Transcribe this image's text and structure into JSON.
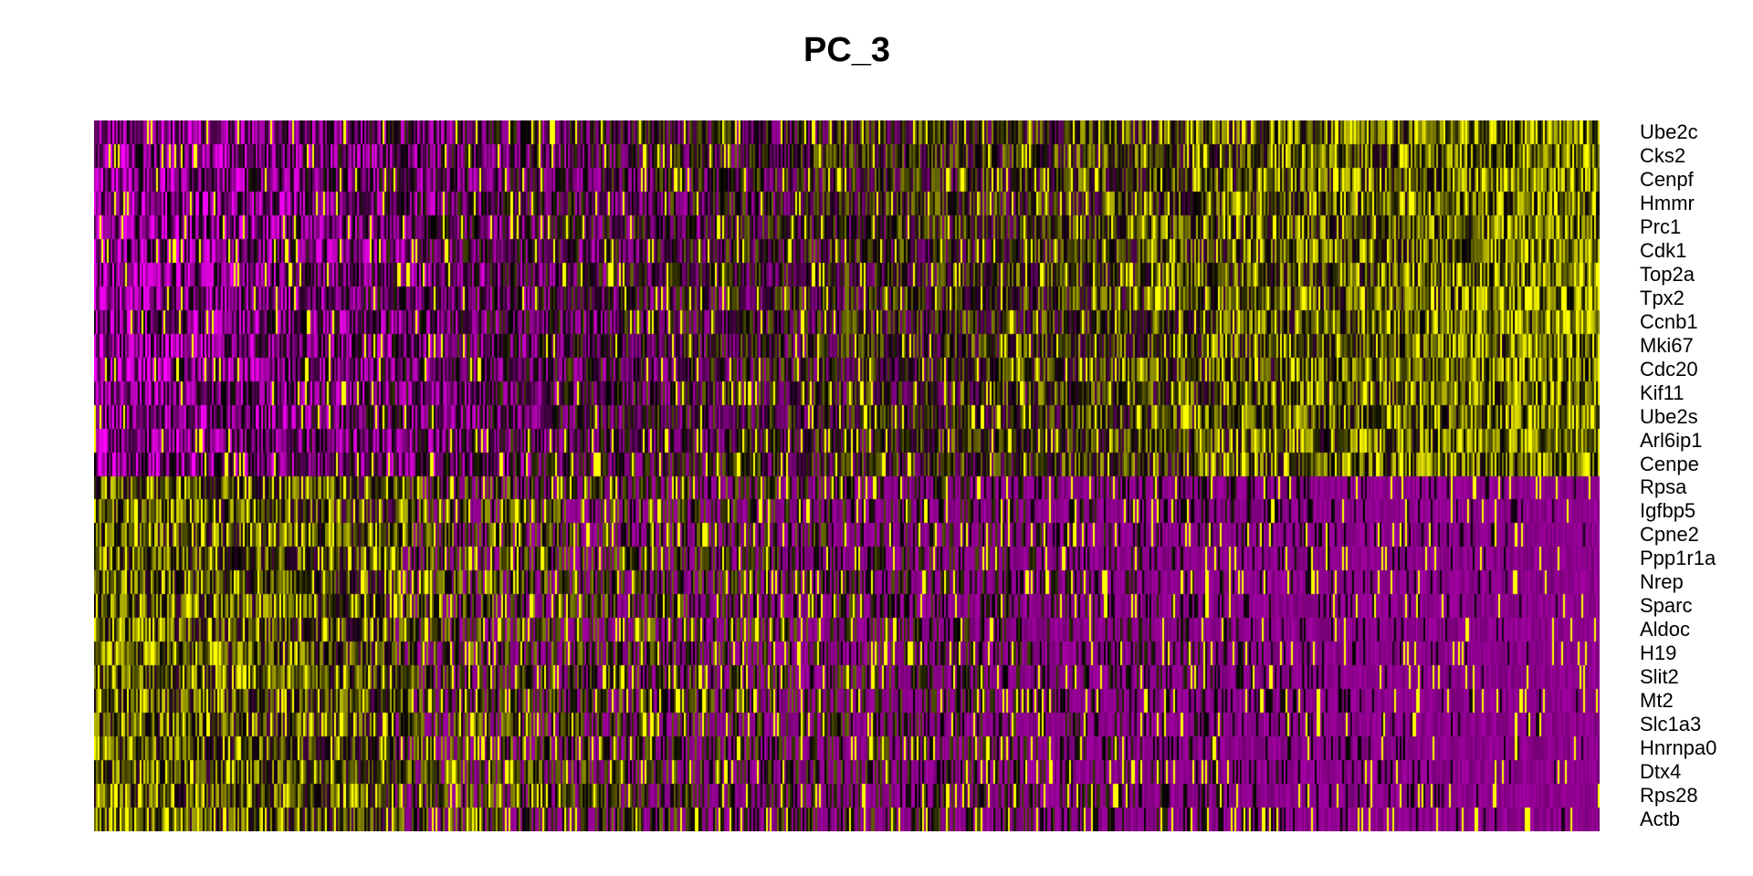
{
  "chart_data": {
    "type": "heatmap",
    "title": "PC_3",
    "colorscale": {
      "low": "#ff00ff",
      "mid": "#000000",
      "high": "#ffff00"
    },
    "genes": [
      "Ube2c",
      "Cks2",
      "Cenpf",
      "Hmmr",
      "Prc1",
      "Cdk1",
      "Top2a",
      "Tpx2",
      "Ccnb1",
      "Mki67",
      "Cdc20",
      "Kif11",
      "Ube2s",
      "Arl6ip1",
      "Cenpe",
      "Rpsa",
      "Igfbp5",
      "Cpne2",
      "Ppp1r1a",
      "Nrep",
      "Sparc",
      "Aldoc",
      "H19",
      "Slit2",
      "Mt2",
      "Slc1a3",
      "Hnrnpa0",
      "Dtx4",
      "Rps28",
      "Actb"
    ],
    "group_high_left": [
      "Rpsa",
      "Igfbp5",
      "Cpne2",
      "Ppp1r1a",
      "Nrep",
      "Sparc",
      "Aldoc",
      "H19",
      "Slit2",
      "Mt2",
      "Slc1a3",
      "Hnrnpa0",
      "Dtx4",
      "Rps28",
      "Actb"
    ],
    "group_high_right": [
      "Ube2c",
      "Cks2",
      "Cenpf",
      "Hmmr",
      "Prc1",
      "Cdk1",
      "Top2a",
      "Tpx2",
      "Ccnb1",
      "Mki67",
      "Cdc20",
      "Kif11",
      "Ube2s",
      "Arl6ip1",
      "Cenpe"
    ],
    "legend": "none"
  }
}
